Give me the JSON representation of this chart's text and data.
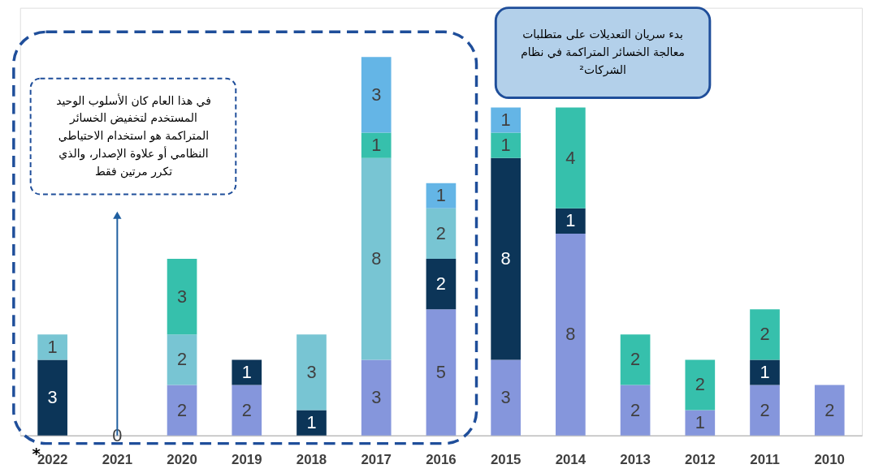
{
  "chart_data": {
    "type": "bar",
    "stacked": true,
    "data_labels": true,
    "tick_labels": "x",
    "categories": [
      "2022",
      "2021",
      "2020",
      "2019",
      "2018",
      "2017",
      "2016",
      "2015",
      "2014",
      "2013",
      "2012",
      "2011",
      "2010"
    ],
    "series": [
      {
        "color": "#8596dc",
        "values": [
          null,
          0,
          2,
          2,
          null,
          3,
          5,
          3,
          8,
          2,
          1,
          2,
          2
        ]
      },
      {
        "color": "#0c3558",
        "values": [
          3,
          null,
          null,
          1,
          1,
          null,
          2,
          8,
          1,
          null,
          null,
          1,
          null
        ]
      },
      {
        "color": "#78c5d3",
        "values": [
          1,
          null,
          2,
          null,
          3,
          8,
          2,
          null,
          null,
          null,
          null,
          null,
          null
        ]
      },
      {
        "color": "#36c0ac",
        "values": [
          null,
          null,
          3,
          null,
          null,
          1,
          null,
          1,
          4,
          2,
          2,
          2,
          null
        ]
      },
      {
        "color": "#64b5e6",
        "values": [
          null,
          null,
          null,
          null,
          null,
          3,
          1,
          1,
          null,
          null,
          null,
          null,
          null
        ]
      }
    ],
    "annotations": [
      "في هذا العام كان الأسلوب الوحيد\nالمستخدم لتخفيض الخسائر\nالمتراكمة هو استخدام الاحتياطي\nالنظامي أو علاوة الإصدار، والذي\nتكرر مرتين فقط",
      "بدء سريان التعديلات على متطلبات\nمعالجة الخسائر المتراكمة في نظام\nالشركات²",
      "*"
    ]
  }
}
